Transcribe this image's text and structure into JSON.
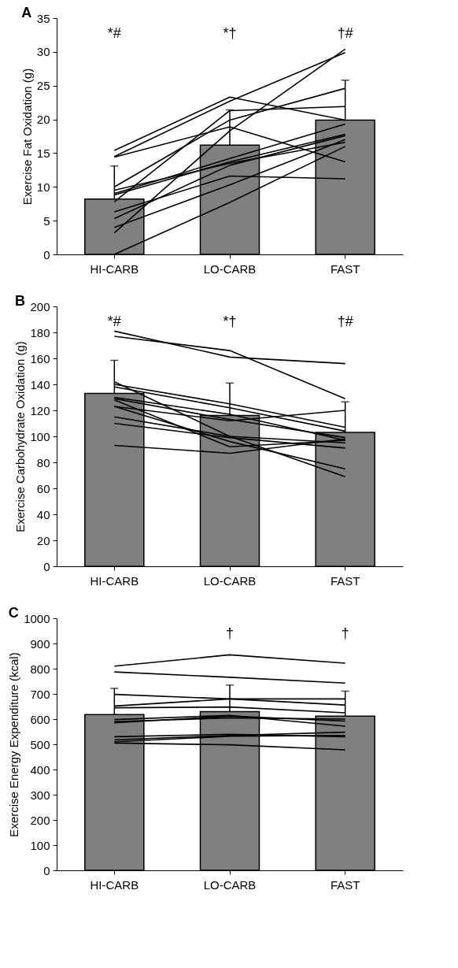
{
  "chart_data": [
    {
      "type": "bar",
      "title": "A",
      "ylabel": "Exercise Fat Oxidation (g)",
      "categories": [
        "HI-CARB",
        "LO-CARB",
        "FAST"
      ],
      "ylim": [
        0,
        35
      ],
      "yticks": [
        0,
        5,
        10,
        15,
        20,
        25,
        30,
        35
      ],
      "annotations": [
        "*#",
        "*†",
        "†#"
      ],
      "series": [
        {
          "color": "#808080",
          "values": [
            8.2,
            16.2,
            19.9
          ],
          "errors": [
            4.9,
            5.2,
            5.9
          ]
        },
        {
          "type": "line",
          "color": "#000000",
          "values": [
            15.4,
            23.3,
            19.9
          ]
        },
        {
          "type": "line",
          "color": "#000000",
          "values": [
            14.5,
            22.7,
            29.9
          ]
        },
        {
          "type": "line",
          "color": "#000000",
          "values": [
            14.4,
            18.9,
            13.7
          ]
        },
        {
          "type": "line",
          "color": "#000000",
          "values": [
            10.0,
            19.9,
            24.6
          ]
        },
        {
          "type": "line",
          "color": "#000000",
          "values": [
            7.8,
            21.3,
            21.9
          ]
        },
        {
          "type": "line",
          "color": "#000000",
          "values": [
            3.2,
            18.3,
            30.4
          ]
        },
        {
          "type": "line",
          "color": "#000000",
          "values": [
            9.0,
            14.2,
            19.3
          ]
        },
        {
          "type": "line",
          "color": "#000000",
          "values": [
            8.8,
            13.7,
            17.8
          ]
        },
        {
          "type": "line",
          "color": "#000000",
          "values": [
            9.5,
            13.5,
            16.6
          ]
        },
        {
          "type": "line",
          "color": "#000000",
          "values": [
            6.3,
            11.6,
            11.2
          ]
        },
        {
          "type": "line",
          "color": "#000000",
          "values": [
            5.3,
            13.2,
            17.6
          ]
        },
        {
          "type": "line",
          "color": "#000000",
          "values": [
            4.0,
            10.3,
            17.0
          ]
        },
        {
          "type": "line",
          "color": "#000000",
          "values": [
            0,
            7.7,
            16.0
          ]
        }
      ]
    },
    {
      "type": "bar",
      "title": "B",
      "ylabel": "Exercise Carbohydrate Oxidation (g)",
      "categories": [
        "HI-CARB",
        "LO-CARB",
        "FAST"
      ],
      "ylim": [
        0,
        200
      ],
      "yticks": [
        0,
        20,
        40,
        60,
        80,
        100,
        120,
        140,
        160,
        180,
        200
      ],
      "annotations": [
        "*#",
        "*†",
        "†#"
      ],
      "series": [
        {
          "color": "#808080",
          "values": [
            133,
            116,
            103
          ],
          "errors": [
            25.5,
            25,
            23.5
          ]
        },
        {
          "type": "line",
          "color": "#000000",
          "values": [
            181,
            161,
            156
          ]
        },
        {
          "type": "line",
          "color": "#000000",
          "values": [
            177,
            166,
            129
          ]
        },
        {
          "type": "line",
          "color": "#000000",
          "values": [
            142,
            100,
            69
          ]
        },
        {
          "type": "line",
          "color": "#000000",
          "values": [
            140,
            125,
            107
          ]
        },
        {
          "type": "line",
          "color": "#000000",
          "values": [
            138,
            122,
            104
          ]
        },
        {
          "type": "line",
          "color": "#000000",
          "values": [
            130,
            117,
            97
          ]
        },
        {
          "type": "line",
          "color": "#000000",
          "values": [
            129,
            113,
            99
          ]
        },
        {
          "type": "line",
          "color": "#000000",
          "values": [
            123,
            112,
            120
          ]
        },
        {
          "type": "line",
          "color": "#000000",
          "values": [
            123,
            96,
            75
          ]
        },
        {
          "type": "line",
          "color": "#000000",
          "values": [
            115,
            100,
            95
          ]
        },
        {
          "type": "line",
          "color": "#000000",
          "values": [
            110,
            99,
            91
          ]
        },
        {
          "type": "line",
          "color": "#000000",
          "values": [
            93,
            87,
            98
          ]
        },
        {
          "type": "line",
          "color": "#000000",
          "values": [
            128,
            92,
            97
          ]
        }
      ]
    },
    {
      "type": "bar",
      "title": "C",
      "ylabel": "Exercise Energy Expenditure (kcal)",
      "categories": [
        "HI-CARB",
        "LO-CARB",
        "FAST"
      ],
      "ylim": [
        0,
        1000
      ],
      "yticks": [
        0,
        100,
        200,
        300,
        400,
        500,
        600,
        700,
        800,
        900,
        1000
      ],
      "annotations": [
        "†",
        "†"
      ],
      "series": [
        {
          "color": "#808080",
          "values": [
            618,
            630,
            612
          ],
          "errors": [
            104,
            105,
            99
          ]
        },
        {
          "type": "line",
          "color": "#000000",
          "values": [
            810,
            855,
            822
          ]
        },
        {
          "type": "line",
          "color": "#000000",
          "values": [
            787,
            766,
            743
          ]
        },
        {
          "type": "line",
          "color": "#000000",
          "values": [
            698,
            680,
            656
          ]
        },
        {
          "type": "line",
          "color": "#000000",
          "values": [
            652,
            680,
            680
          ]
        },
        {
          "type": "line",
          "color": "#000000",
          "values": [
            645,
            648,
            625
          ]
        },
        {
          "type": "line",
          "color": "#000000",
          "values": [
            598,
            615,
            572
          ]
        },
        {
          "type": "line",
          "color": "#000000",
          "values": [
            590,
            605,
            600
          ]
        },
        {
          "type": "line",
          "color": "#000000",
          "values": [
            585,
            612,
            592
          ]
        },
        {
          "type": "line",
          "color": "#000000",
          "values": [
            530,
            540,
            530
          ]
        },
        {
          "type": "line",
          "color": "#000000",
          "values": [
            518,
            535,
            548
          ]
        },
        {
          "type": "line",
          "color": "#000000",
          "values": [
            510,
            532,
            535
          ]
        },
        {
          "type": "line",
          "color": "#000000",
          "values": [
            505,
            498,
            478
          ]
        }
      ]
    }
  ]
}
